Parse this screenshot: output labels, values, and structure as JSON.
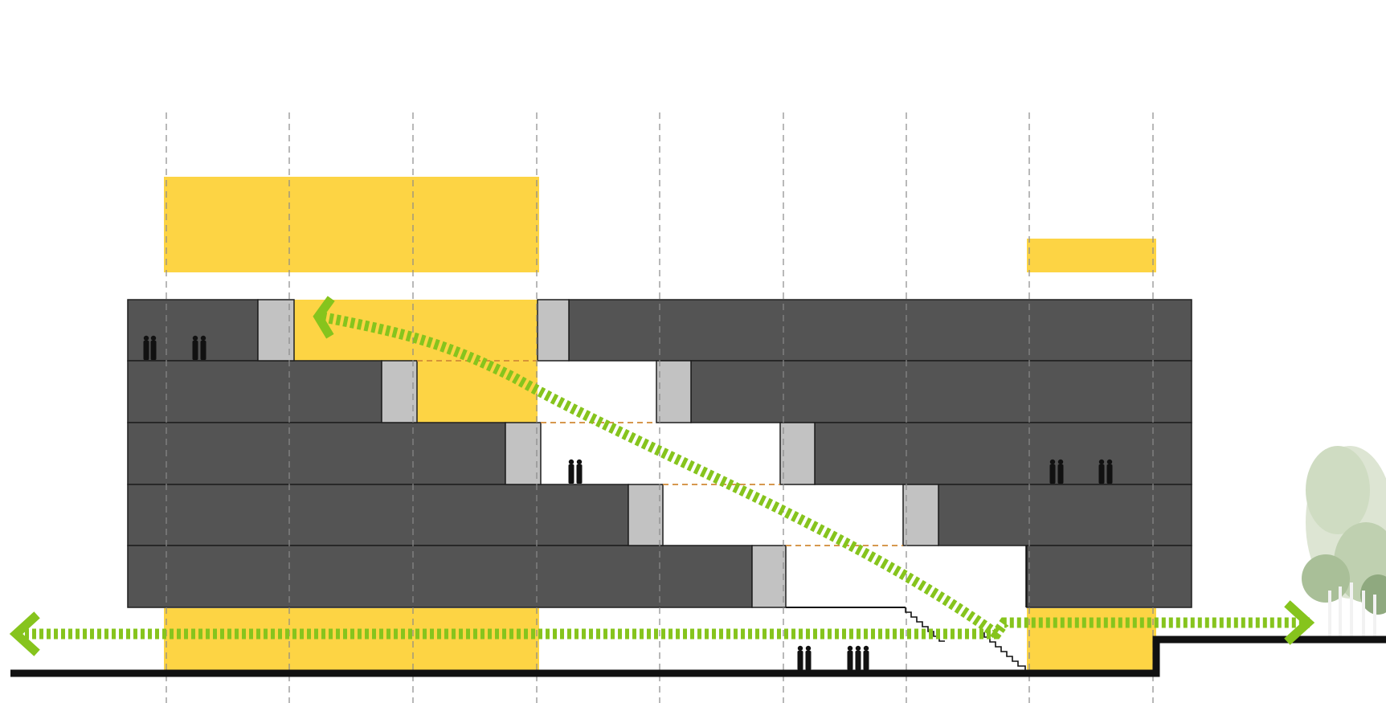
{
  "diagram": {
    "type": "architectural-section",
    "colors": {
      "background": "#ffffff",
      "floor_slab": "#545454",
      "slab_outline": "#1e1e1e",
      "core": "#c2c2c2",
      "yellow_volume": "#fdd444",
      "circulation_arrow": "#86c41d",
      "grid_line": "#8a8a8a",
      "void_edge": "#d18a36",
      "ground": "#111111",
      "people": "#111111",
      "tree_canopy": "#b7c9a7",
      "tree_trunk": "#eeeeee"
    },
    "icons": {
      "people": "people-silhouette-icon",
      "arrow_head": "chevron-left-icon",
      "tree": "tree-icon",
      "stair": "staircase-icon"
    }
  }
}
